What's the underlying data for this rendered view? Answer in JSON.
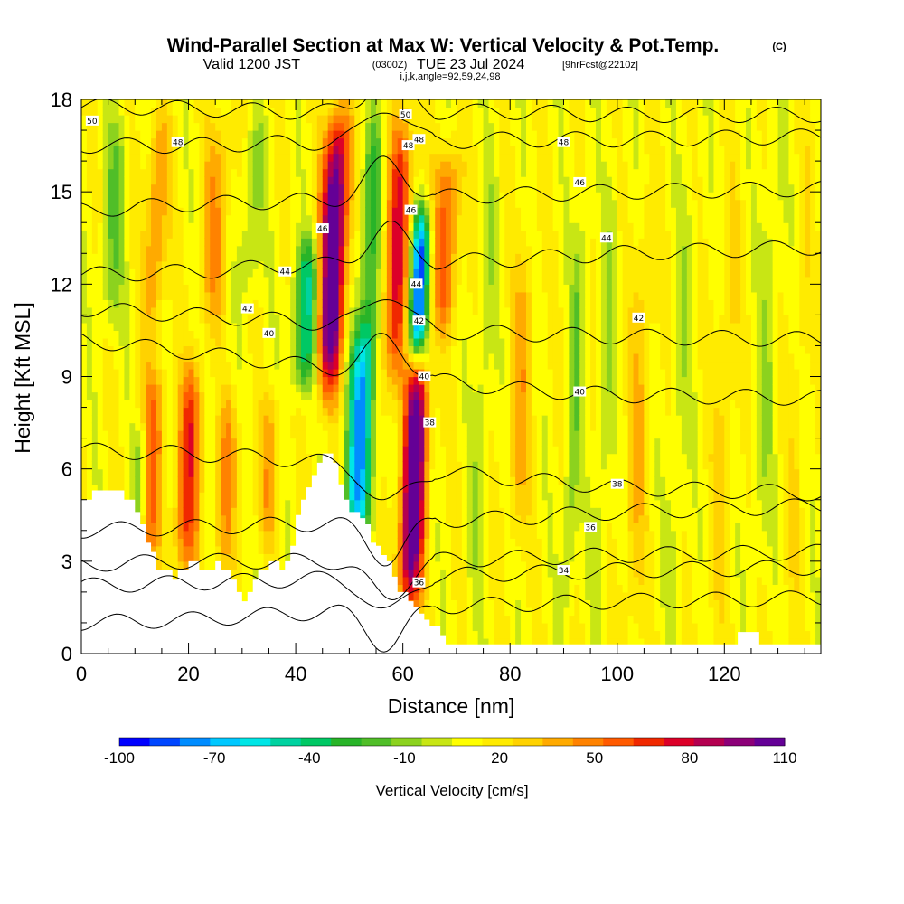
{
  "header": {
    "title": "Wind-Parallel Section at Max W: Vertical Velocity & Pot.Temp.",
    "title_mark": "(C)",
    "subtitle_pre": "Valid 1200 JST",
    "subtitle_utc": "(0300Z)",
    "subtitle_date": "TUE 23 Jul 2024",
    "subtitle_fcst": "[9hrFcst@2210z]",
    "index_line": "i,j,k,angle=92,59,24,98"
  },
  "chart_data": {
    "type": "heatmap",
    "title": "Wind-Parallel Section at Max W: Vertical Velocity & Pot.Temp.",
    "xlabel": "Distance [nm]",
    "ylabel": "Height [Kft MSL]",
    "xlim": [
      0,
      138
    ],
    "ylim": [
      0,
      18
    ],
    "x_ticks": [
      0,
      20,
      40,
      60,
      80,
      100,
      120
    ],
    "y_ticks": [
      0,
      3,
      6,
      9,
      12,
      15,
      18
    ],
    "colorbar": {
      "title": "Vertical Velocity [cm/s]",
      "labels": [
        "-100",
        "-70",
        "-40",
        "-10",
        "20",
        "50",
        "80",
        "110"
      ],
      "min": -100,
      "max": 110,
      "colors": [
        "#0000ff",
        "#0046ff",
        "#008cff",
        "#00c8ff",
        "#00e6e6",
        "#00d2a0",
        "#00c864",
        "#28b428",
        "#50be28",
        "#8cd21e",
        "#c8e614",
        "#ffff00",
        "#ffeb00",
        "#ffd200",
        "#ffaa00",
        "#ff8200",
        "#ff5a00",
        "#f02800",
        "#dc0028",
        "#b40050",
        "#8c0078",
        "#640096"
      ]
    },
    "terrain_kft": [
      [
        0,
        5.0
      ],
      [
        2,
        5.3
      ],
      [
        7,
        5.3
      ],
      [
        8,
        5.0
      ],
      [
        10,
        4.6
      ],
      [
        11,
        4.2
      ],
      [
        12,
        3.6
      ],
      [
        13,
        3.3
      ],
      [
        14,
        2.7
      ],
      [
        17,
        2.4
      ],
      [
        18,
        2.7
      ],
      [
        20,
        3.0
      ],
      [
        21,
        3.0
      ],
      [
        22,
        2.7
      ],
      [
        23,
        2.7
      ],
      [
        24,
        2.7
      ],
      [
        25,
        3.0
      ],
      [
        26,
        2.7
      ],
      [
        27,
        2.7
      ],
      [
        28,
        2.4
      ],
      [
        29,
        2.0
      ],
      [
        30,
        1.7
      ],
      [
        31,
        2.0
      ],
      [
        32,
        2.4
      ],
      [
        33,
        2.7
      ],
      [
        35,
        3.0
      ],
      [
        36,
        3.0
      ],
      [
        37,
        2.7
      ],
      [
        38,
        3.0
      ],
      [
        39,
        3.5
      ],
      [
        40,
        4.5
      ],
      [
        41,
        5.0
      ],
      [
        42,
        5.4
      ],
      [
        43,
        5.8
      ],
      [
        44,
        6.2
      ],
      [
        45,
        6.5
      ],
      [
        46,
        6.5
      ],
      [
        47,
        6.2
      ],
      [
        48,
        5.5
      ],
      [
        49,
        5.0
      ],
      [
        50,
        4.6
      ],
      [
        52,
        4.4
      ],
      [
        53,
        4.2
      ],
      [
        54,
        3.6
      ],
      [
        55,
        3.5
      ],
      [
        56,
        3.2
      ],
      [
        57,
        3.0
      ],
      [
        58,
        2.5
      ],
      [
        59,
        2.0
      ],
      [
        61,
        1.7
      ],
      [
        62,
        1.5
      ],
      [
        63,
        1.3
      ],
      [
        64,
        1.1
      ],
      [
        65,
        0.9
      ],
      [
        67,
        0.6
      ],
      [
        68,
        0.3
      ],
      [
        69,
        0.3
      ],
      [
        122,
        0.3
      ],
      [
        122.5,
        0.7
      ],
      [
        126,
        0.7
      ],
      [
        126.5,
        0.3
      ],
      [
        138,
        0.3
      ]
    ],
    "theta_levels": [
      {
        "value": 30,
        "y_kft": [
          1.0,
          1.1,
          1.3,
          1.5,
          1.6,
          1.7,
          1.8
        ]
      },
      {
        "value": 32,
        "y_kft": [
          2.2,
          2.3,
          2.4,
          2.5,
          2.6,
          2.7,
          2.8
        ]
      },
      {
        "value": 34,
        "y_kft": [
          2.9,
          3.0,
          3.0,
          3.0,
          3.1,
          3.2,
          3.3
        ]
      },
      {
        "value": 36,
        "y_kft": [
          4.0,
          4.1,
          4.2,
          4.3,
          4.4,
          4.6,
          4.8
        ]
      },
      {
        "value": 38,
        "y_kft": [
          6.6,
          6.5,
          6.3,
          6.0,
          5.7,
          5.4,
          5.2
        ]
      },
      {
        "value": 40,
        "y_kft": [
          10.2,
          9.8,
          9.4,
          9.0,
          8.6,
          8.4,
          8.3
        ]
      },
      {
        "value": 42,
        "y_kft": [
          11.2,
          11.0,
          10.8,
          10.5,
          10.4,
          10.3,
          10.2
        ]
      },
      {
        "value": 44,
        "y_kft": [
          12.3,
          12.4,
          12.6,
          12.7,
          12.8,
          13.0,
          13.2
        ]
      },
      {
        "value": 46,
        "y_kft": [
          14.4,
          14.6,
          14.7,
          14.8,
          14.9,
          15.0,
          15.1
        ]
      },
      {
        "value": 48,
        "y_kft": [
          16.5,
          16.5,
          16.6,
          16.6,
          16.7,
          16.7,
          16.8
        ]
      },
      {
        "value": 50,
        "y_kft": [
          17.8,
          17.7,
          17.6,
          17.6,
          17.6,
          17.5,
          17.5
        ]
      }
    ],
    "theta_x_nodes": [
      0,
      20,
      40,
      60,
      80,
      100,
      138
    ],
    "contour_labels": [
      {
        "text": "50",
        "x": 2,
        "y": 17.3
      },
      {
        "text": "48",
        "x": 18,
        "y": 16.6
      },
      {
        "text": "48",
        "x": 63,
        "y": 16.7
      },
      {
        "text": "48",
        "x": 90,
        "y": 16.6
      },
      {
        "text": "46",
        "x": 45,
        "y": 13.8
      },
      {
        "text": "46",
        "x": 93,
        "y": 15.3
      },
      {
        "text": "44",
        "x": 38,
        "y": 12.4
      },
      {
        "text": "44",
        "x": 98,
        "y": 13.5
      },
      {
        "text": "42",
        "x": 31,
        "y": 11.2
      },
      {
        "text": "42",
        "x": 104,
        "y": 10.9
      },
      {
        "text": "40",
        "x": 35,
        "y": 10.4
      },
      {
        "text": "40",
        "x": 93,
        "y": 8.5
      },
      {
        "text": "38",
        "x": 100,
        "y": 5.5
      },
      {
        "text": "36",
        "x": 95,
        "y": 4.1
      },
      {
        "text": "34",
        "x": 90,
        "y": 2.7
      },
      {
        "text": "50",
        "x": 60.5,
        "y": 17.5
      },
      {
        "text": "48",
        "x": 61,
        "y": 16.5
      },
      {
        "text": "46",
        "x": 61.5,
        "y": 14.4
      },
      {
        "text": "44",
        "x": 62.5,
        "y": 12.0
      },
      {
        "text": "42",
        "x": 63,
        "y": 10.8
      },
      {
        "text": "40",
        "x": 64,
        "y": 9.0
      },
      {
        "text": "38",
        "x": 65,
        "y": 7.5
      },
      {
        "text": "36",
        "x": 63,
        "y": 2.3
      }
    ],
    "w_features": [
      {
        "x": 13,
        "y0": 3,
        "y1": 9,
        "w": 42,
        "width": 2.2
      },
      {
        "x": 20,
        "y0": 3,
        "y1": 9,
        "w": 55,
        "width": 2.2
      },
      {
        "x": 27,
        "y0": 3,
        "y1": 8,
        "w": 30,
        "width": 2.0
      },
      {
        "x": 35,
        "y0": 4,
        "y1": 8,
        "w": 25,
        "width": 2.0
      },
      {
        "x": 11,
        "y0": 4,
        "y1": 7,
        "w": -35,
        "width": 1.2
      },
      {
        "x": 47,
        "y0": 9,
        "y1": 17,
        "w": 110,
        "width": 2.4
      },
      {
        "x": 62,
        "y0": 2,
        "y1": 9,
        "w": 110,
        "width": 2.2
      },
      {
        "x": 59,
        "y0": 9,
        "y1": 17,
        "w": 60,
        "width": 2.4
      },
      {
        "x": 52,
        "y0": 4,
        "y1": 10,
        "w": -85,
        "width": 2.4
      },
      {
        "x": 63,
        "y0": 10,
        "y1": 14,
        "w": -95,
        "width": 1.8
      },
      {
        "x": 42,
        "y0": 9,
        "y1": 13,
        "w": -55,
        "width": 2.4
      },
      {
        "x": 54,
        "y0": 10,
        "y1": 17,
        "w": -40,
        "width": 2.0
      },
      {
        "x": 68,
        "y0": 11,
        "y1": 16,
        "w": 45,
        "width": 2.4
      },
      {
        "x": 6,
        "y0": 11,
        "y1": 17,
        "w": -25,
        "width": 2.0
      },
      {
        "x": 14,
        "y0": 11,
        "y1": 17,
        "w": 35,
        "width": 2.0
      },
      {
        "x": 25,
        "y0": 11,
        "y1": 17,
        "w": 30,
        "width": 2.4
      },
      {
        "x": 32,
        "y0": 12,
        "y1": 17,
        "w": -20,
        "width": 2.0
      },
      {
        "x": 75,
        "y0": 2,
        "y1": 16,
        "w": -15,
        "width": 1.6
      },
      {
        "x": 82,
        "y0": 4,
        "y1": 13,
        "w": 25,
        "width": 2.0
      },
      {
        "x": 92,
        "y0": 2,
        "y1": 14,
        "w": -25,
        "width": 1.4
      },
      {
        "x": 98,
        "y0": 2,
        "y1": 16,
        "w": -15,
        "width": 1.4
      },
      {
        "x": 104,
        "y0": 1,
        "y1": 14,
        "w": 20,
        "width": 2.0
      },
      {
        "x": 112,
        "y0": 2,
        "y1": 16,
        "w": -12,
        "width": 1.8
      },
      {
        "x": 120,
        "y0": 1,
        "y1": 15,
        "w": 15,
        "width": 2.0
      },
      {
        "x": 128,
        "y0": 3,
        "y1": 17,
        "w": -15,
        "width": 1.8
      },
      {
        "x": 134,
        "y0": 1,
        "y1": 17,
        "w": 10,
        "width": 1.6
      }
    ]
  }
}
